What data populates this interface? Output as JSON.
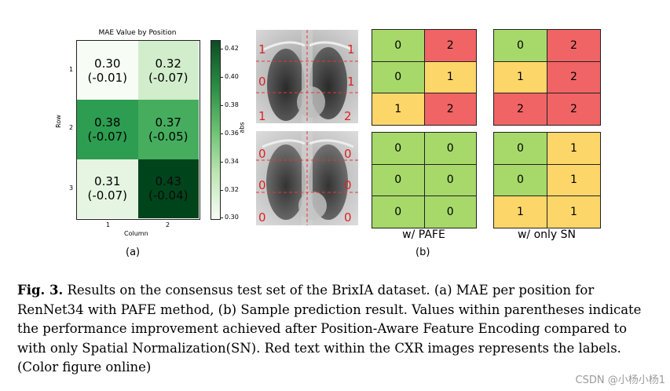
{
  "heatmap": {
    "title": "MAE Value by Position",
    "ylabel": "Row",
    "xlabel": "Column",
    "row_ticks": [
      "1",
      "2",
      "3"
    ],
    "col_ticks": [
      "1",
      "2"
    ],
    "colorbar_label": "abs",
    "colorbar_ticks": [
      "0.42",
      "0.40",
      "0.38",
      "0.36",
      "0.34",
      "0.32",
      "0.30"
    ],
    "cells": [
      {
        "value": "0.30",
        "delta": "(-0.01)"
      },
      {
        "value": "0.32",
        "delta": "(-0.07)"
      },
      {
        "value": "0.38",
        "delta": "(-0.07)"
      },
      {
        "value": "0.37",
        "delta": "(-0.05)"
      },
      {
        "value": "0.31",
        "delta": "(-0.07)"
      },
      {
        "value": "0.43",
        "delta": "(-0.04)"
      }
    ],
    "panel_label": "(a)"
  },
  "chart_data": {
    "type": "heatmap",
    "title": "MAE Value by Position",
    "xlabel": "Column",
    "ylabel": "Row",
    "x": [
      "1",
      "2"
    ],
    "y": [
      "1",
      "2",
      "3"
    ],
    "values": [
      [
        0.3,
        0.32
      ],
      [
        0.38,
        0.37
      ],
      [
        0.31,
        0.43
      ]
    ],
    "annotations": [
      [
        "(-0.01)",
        "(-0.07)"
      ],
      [
        "(-0.07)",
        "(-0.05)"
      ],
      [
        "(-0.07)",
        "(-0.04)"
      ]
    ],
    "colorbar": {
      "label": "abs",
      "range": [
        0.3,
        0.43
      ],
      "colormap": "greens"
    }
  },
  "xray1_labels": {
    "left": [
      "1",
      "0",
      "1"
    ],
    "right": [
      "1",
      "1",
      "2"
    ]
  },
  "xray2_labels": {
    "left": [
      "0",
      "0",
      "0"
    ],
    "right": [
      "0",
      "0",
      "0"
    ]
  },
  "pafe_top": [
    "0",
    "2",
    "0",
    "1",
    "1",
    "2"
  ],
  "sn_top": [
    "0",
    "2",
    "1",
    "2",
    "2",
    "2"
  ],
  "pafe_bottom": [
    "0",
    "0",
    "0",
    "0",
    "0",
    "0"
  ],
  "sn_bottom": [
    "0",
    "1",
    "0",
    "1",
    "1",
    "1"
  ],
  "colors": {
    "score0": "#a6d96a",
    "score1": "#fdd66a",
    "score2": "#f06466"
  },
  "grid_labels": {
    "pafe": "w/ PAFE",
    "sn": "w/ only SN",
    "panel_b": "(b)"
  },
  "caption": {
    "fig": "Fig. 3.",
    "text": " Results on the consensus test set of the BrixIA dataset. (a) MAE per position for RenNet34 with PAFE method, (b) Sample prediction result. Values within parentheses indicate the performance improvement achieved after Position-Aware Feature Encoding compared to with only Spatial Normalization(SN). Red text within the CXR images represents the labels. (Color figure online)"
  },
  "watermark": "CSDN @小杨小杨1"
}
